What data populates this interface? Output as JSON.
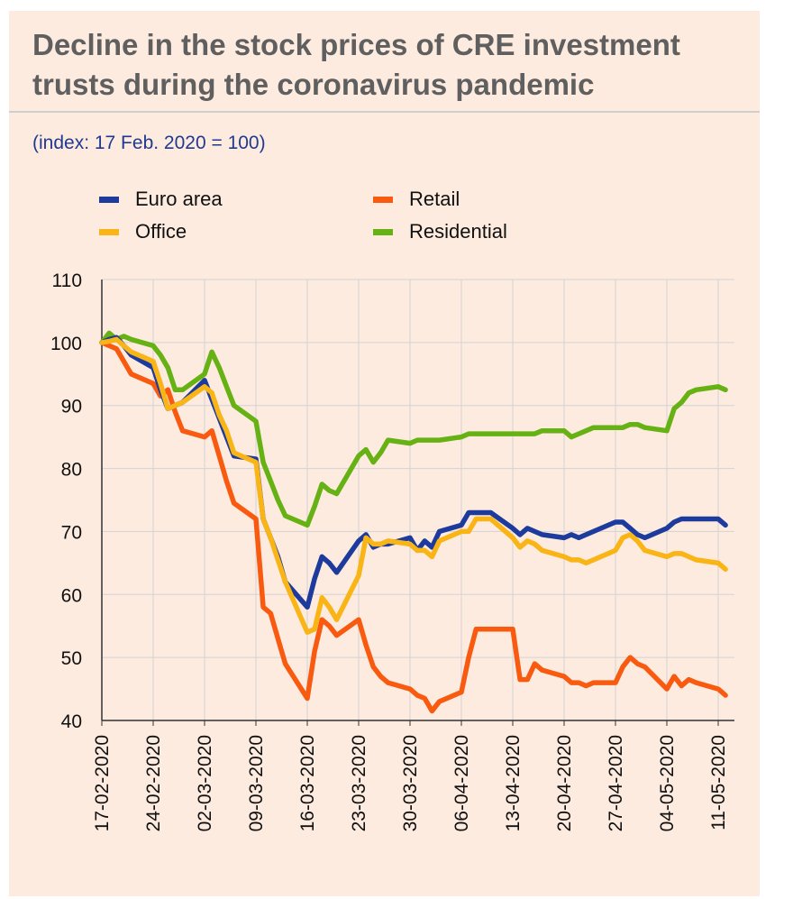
{
  "title": "Decline in the stock prices of CRE investment trusts during the coronavirus pandemic",
  "subtitle": "(index: 17 Feb. 2020 = 100)",
  "legend": [
    {
      "name": "Euro area",
      "color": "#1d3b9c"
    },
    {
      "name": "Retail",
      "color": "#f85a10"
    },
    {
      "name": "Office",
      "color": "#f9b415"
    },
    {
      "name": "Residential",
      "color": "#66b113"
    }
  ],
  "chart_data": {
    "type": "line",
    "title": "Decline in the stock prices of CRE investment trusts during the coronavirus pandemic",
    "subtitle": "(index: 17 Feb. 2020 = 100)",
    "xlabel": "",
    "ylabel": "",
    "ylim": [
      40,
      110
    ],
    "yticks": [
      40,
      50,
      60,
      70,
      80,
      90,
      100,
      110
    ],
    "xtick_labels": [
      "17-02-2020",
      "24-02-2020",
      "02-03-2020",
      "09-03-2020",
      "16-03-2020",
      "23-03-2020",
      "30-03-2020",
      "06-04-2020",
      "13-04-2020",
      "20-04-2020",
      "27-04-2020",
      "04-05-2020",
      "11-05-2020"
    ],
    "x": [
      "2020-02-17",
      "2020-02-18",
      "2020-02-19",
      "2020-02-20",
      "2020-02-21",
      "2020-02-24",
      "2020-02-25",
      "2020-02-26",
      "2020-02-27",
      "2020-02-28",
      "2020-03-02",
      "2020-03-03",
      "2020-03-04",
      "2020-03-05",
      "2020-03-06",
      "2020-03-09",
      "2020-03-10",
      "2020-03-11",
      "2020-03-12",
      "2020-03-13",
      "2020-03-16",
      "2020-03-17",
      "2020-03-18",
      "2020-03-19",
      "2020-03-20",
      "2020-03-23",
      "2020-03-24",
      "2020-03-25",
      "2020-03-26",
      "2020-03-27",
      "2020-03-30",
      "2020-03-31",
      "2020-04-01",
      "2020-04-02",
      "2020-04-03",
      "2020-04-06",
      "2020-04-07",
      "2020-04-08",
      "2020-04-09",
      "2020-04-10",
      "2020-04-13",
      "2020-04-14",
      "2020-04-15",
      "2020-04-16",
      "2020-04-17",
      "2020-04-20",
      "2020-04-21",
      "2020-04-22",
      "2020-04-23",
      "2020-04-24",
      "2020-04-27",
      "2020-04-28",
      "2020-04-29",
      "2020-04-30",
      "2020-05-01",
      "2020-05-04",
      "2020-05-05",
      "2020-05-06",
      "2020-05-07",
      "2020-05-08",
      "2020-05-11",
      "2020-05-12"
    ],
    "series": [
      {
        "name": "Euro area",
        "color": "#1d3b9c",
        "values": [
          100,
          100.5,
          100.8,
          99.5,
          98,
          96,
          92.5,
          89.5,
          90,
          90.5,
          94,
          91,
          88,
          85,
          82,
          81.5,
          72,
          69,
          66,
          62,
          58,
          62.5,
          66,
          65,
          63.5,
          68.5,
          69.5,
          67.5,
          68,
          68,
          69,
          67,
          68.5,
          67.5,
          70,
          71,
          73,
          73,
          73,
          73,
          70.5,
          69.5,
          70.5,
          70,
          69.5,
          69,
          69.5,
          69,
          69.5,
          70,
          71.5,
          71.5,
          70.5,
          69.5,
          69,
          70.5,
          71.5,
          72,
          72,
          72,
          72,
          71
        ]
      },
      {
        "name": "Retail",
        "color": "#f85a10",
        "values": [
          100,
          99.5,
          99,
          97,
          95,
          93.5,
          91.5,
          92.5,
          89,
          86,
          85,
          86,
          82,
          78,
          74.5,
          72,
          58,
          57,
          53,
          49,
          43.5,
          51,
          56,
          55,
          53.5,
          56,
          52,
          48.5,
          47,
          46,
          45,
          44,
          43.5,
          41.5,
          43,
          44.5,
          50,
          54.5,
          54.5,
          54.5,
          54.5,
          46.5,
          46.5,
          49,
          48,
          47,
          46,
          46,
          45.5,
          46,
          46,
          48.5,
          50,
          49,
          48.5,
          45,
          47,
          45.5,
          46.5,
          46,
          45,
          44
        ]
      },
      {
        "name": "Office",
        "color": "#f9b415",
        "values": [
          100,
          100.2,
          100.5,
          99.5,
          98.5,
          97,
          93.5,
          89.5,
          90,
          90.5,
          93,
          92,
          88.5,
          86,
          82.5,
          81,
          72,
          69,
          65.5,
          62,
          54,
          54.5,
          59.5,
          58,
          56,
          63,
          69,
          68,
          68,
          68.5,
          68,
          67,
          67,
          66,
          68.5,
          70,
          70,
          72,
          72,
          72,
          69,
          67.5,
          68.5,
          68,
          67,
          66,
          65.5,
          65.5,
          65,
          65.5,
          67,
          69,
          69.5,
          68.5,
          67,
          66,
          66.5,
          66.5,
          66,
          65.5,
          65,
          64
        ]
      },
      {
        "name": "Residential",
        "color": "#66b113",
        "values": [
          100,
          101.5,
          100.5,
          101,
          100.5,
          99.5,
          98,
          96,
          92.5,
          92.5,
          95,
          98.5,
          96,
          93,
          90,
          87.5,
          81,
          78,
          75,
          72.5,
          71,
          74,
          77.5,
          76.5,
          76,
          82,
          83,
          81,
          82.5,
          84.5,
          84,
          84.5,
          84.5,
          84.5,
          84.5,
          85,
          85.5,
          85.5,
          85.5,
          85.5,
          85.5,
          85.5,
          85.5,
          85.5,
          86,
          86,
          85,
          85.5,
          86,
          86.5,
          86.5,
          86.5,
          87,
          87,
          86.5,
          86,
          89.5,
          90.5,
          92,
          92.5,
          93,
          92.5
        ]
      }
    ]
  }
}
